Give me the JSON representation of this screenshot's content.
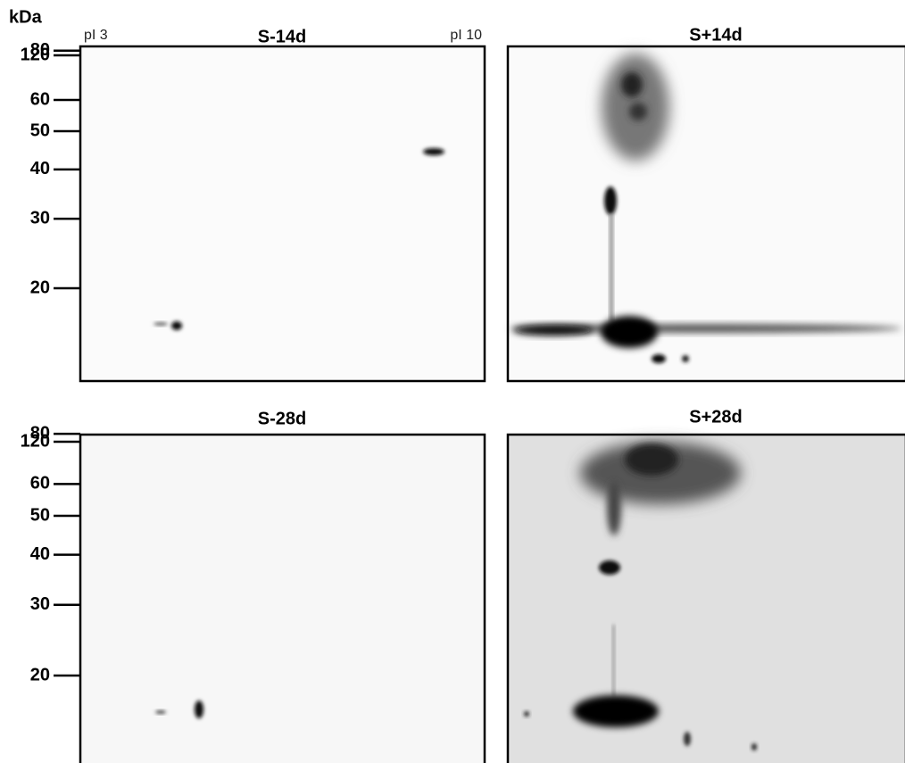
{
  "axis_label": "kDa",
  "pi_range": [
    "pI 3",
    "pI 10"
  ],
  "mw_markers": [
    120,
    80,
    60,
    50,
    40,
    30,
    20
  ],
  "panels": [
    {
      "title": "S-14d"
    },
    {
      "title": "S+14d"
    },
    {
      "title": "S-28d"
    },
    {
      "title": "S+28d"
    }
  ]
}
